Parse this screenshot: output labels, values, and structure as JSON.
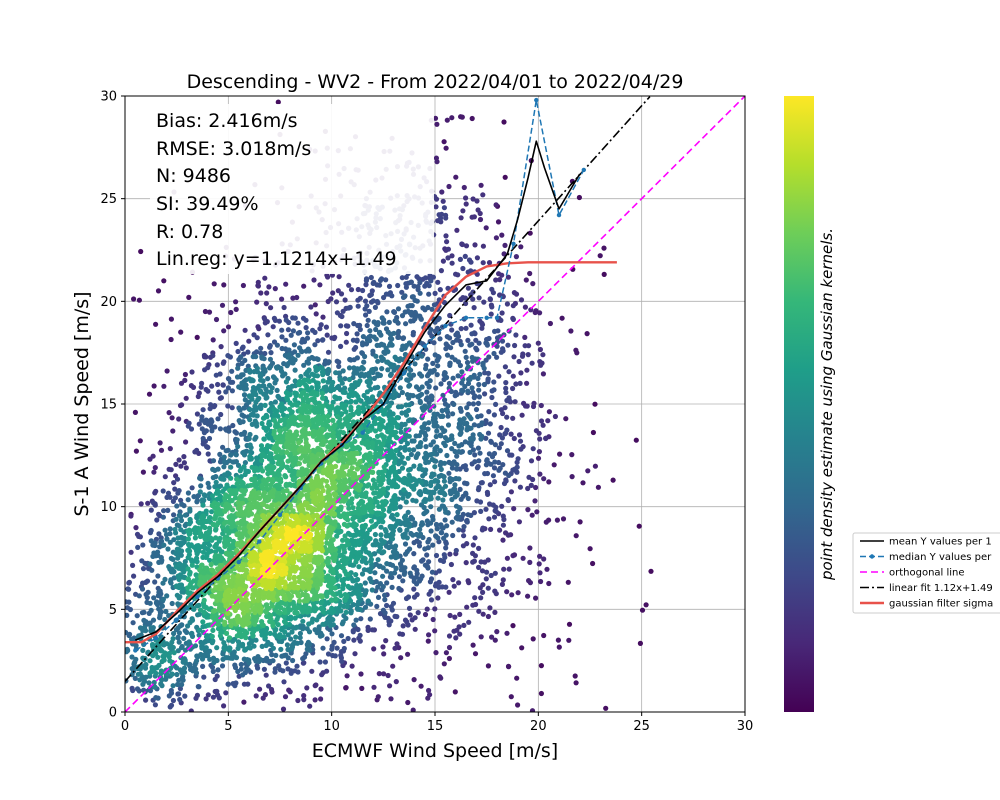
{
  "chart_data": {
    "type": "scatter",
    "title": "Descending - WV2 - From 2022/04/01 to 2022/04/29",
    "xlabel": "ECMWF Wind Speed [m/s]",
    "ylabel": "S-1 A Wind Speed [m/s]",
    "xlim": [
      0,
      30
    ],
    "ylim": [
      0,
      30
    ],
    "xticks": [
      0,
      5,
      10,
      15,
      20,
      25,
      30
    ],
    "yticks": [
      0,
      5,
      10,
      15,
      20,
      25,
      30
    ],
    "grid": true,
    "stats": [
      "Bias: 2.416m/s",
      "RMSE: 3.018m/s",
      "N: 9486",
      "SI: 39.49%",
      "R: 0.78",
      "Lin.reg: y=1.1214x+1.49"
    ],
    "colorbar_label": "point density estimate using Gaussian kernels.",
    "colormap": [
      "#440154",
      "#482878",
      "#3e4989",
      "#31688e",
      "#26828e",
      "#1f9e89",
      "#35b779",
      "#6ece58",
      "#b5de2b",
      "#fde725"
    ],
    "density_clusters": [
      {
        "cx": 7.2,
        "cy": 7.6,
        "sx": 2.1,
        "sy": 2.6,
        "rot": 48,
        "n": 1800
      },
      {
        "cx": 9.5,
        "cy": 12.5,
        "sx": 2.4,
        "sy": 3.2,
        "rot": 35,
        "n": 1500
      },
      {
        "cx": 11.0,
        "cy": 11.0,
        "sx": 3.6,
        "sy": 5.0,
        "rot": 40,
        "n": 1600
      },
      {
        "cx": 4.5,
        "cy": 5.5,
        "sx": 2.0,
        "sy": 2.6,
        "rot": 45,
        "n": 900
      },
      {
        "cx": 15.0,
        "cy": 20.0,
        "sx": 2.6,
        "sy": 4.6,
        "rot": 20,
        "n": 700
      },
      {
        "cx": 14.5,
        "cy": 14.0,
        "sx": 2.6,
        "sy": 3.5,
        "rot": 30,
        "n": 500
      },
      {
        "cx": 1.5,
        "cy": 2.6,
        "sx": 1.0,
        "sy": 1.4,
        "rot": 40,
        "n": 250
      }
    ],
    "series": [
      {
        "name": "mean Y values per 1",
        "color": "#000000",
        "style": "solid",
        "x": [
          0.5,
          1.5,
          2.5,
          3.5,
          4.5,
          5.5,
          6.5,
          7.5,
          8.5,
          9.5,
          10.5,
          11.5,
          12.5,
          13.5,
          14.5,
          15.5,
          16.5,
          17.5,
          18.5,
          19.0,
          19.5,
          19.9,
          20.3,
          21.0,
          22.0
        ],
        "y": [
          3.5,
          3.9,
          4.8,
          5.8,
          6.6,
          7.6,
          8.8,
          9.9,
          11.0,
          12.2,
          13.0,
          14.2,
          15.0,
          16.8,
          18.5,
          19.8,
          20.8,
          21.0,
          22.3,
          24.0,
          26.0,
          27.8,
          26.5,
          24.5,
          26.2
        ]
      },
      {
        "name": "median Y values per",
        "color": "#1f77b4",
        "style": "dashed-dot-markers",
        "x": [
          0.5,
          1.5,
          2.5,
          3.5,
          4.5,
          5.5,
          6.5,
          7.5,
          8.5,
          9.5,
          10.5,
          11.5,
          12.5,
          13.5,
          14.5,
          15.5,
          16.5,
          17.5,
          18.0,
          18.8,
          19.9,
          21.0,
          22.2
        ],
        "y": [
          3.0,
          3.6,
          4.5,
          5.6,
          6.5,
          7.3,
          8.3,
          9.6,
          10.9,
          12.1,
          13.0,
          13.6,
          15.0,
          16.5,
          17.8,
          18.8,
          19.2,
          19.2,
          19.2,
          22.8,
          29.8,
          24.2,
          26.4
        ]
      },
      {
        "name": "orthogonal line",
        "color": "#ff00ff",
        "style": "dashed",
        "x": [
          0,
          30
        ],
        "y": [
          0,
          30
        ]
      },
      {
        "name": "linear fit 1.12x+1.49",
        "color": "#000000",
        "style": "dashdot",
        "x": [
          0,
          25.4
        ],
        "y": [
          1.49,
          29.97
        ]
      },
      {
        "name": "gaussian filter sigma",
        "color": "#e8524a",
        "style": "solid-thick",
        "x": [
          0.0,
          0.8,
          1.5,
          2.5,
          3.5,
          4.5,
          5.5,
          6.5,
          7.5,
          8.5,
          9.5,
          10.5,
          11.5,
          12.5,
          13.5,
          14.5,
          15.5,
          16.5,
          17.5,
          18.5,
          19.5,
          21.0,
          23.8
        ],
        "y": [
          3.4,
          3.4,
          3.8,
          4.9,
          5.9,
          6.7,
          7.7,
          8.8,
          9.9,
          11.0,
          12.2,
          13.1,
          14.2,
          15.5,
          17.0,
          18.7,
          20.3,
          21.2,
          21.7,
          21.85,
          21.9,
          21.9,
          21.9
        ]
      }
    ]
  }
}
